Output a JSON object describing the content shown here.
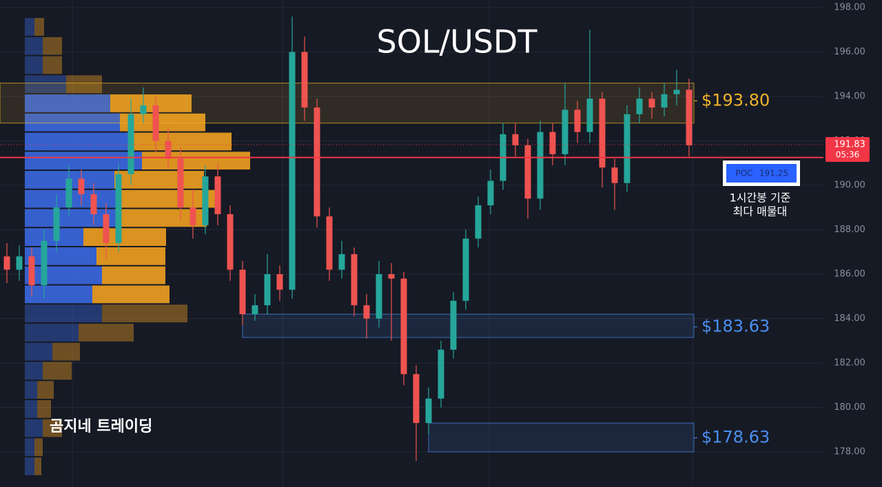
{
  "chart_data": {
    "type": "candlestick",
    "title": "SOL/USDT",
    "watermark": "곰지네 트레이딩",
    "ylim": [
      176.42,
      198.34
    ],
    "yticks": [
      {
        "value": 178,
        "label": "178.00"
      },
      {
        "value": 180,
        "label": "180.00"
      },
      {
        "value": 182,
        "label": "182.00"
      },
      {
        "value": 184,
        "label": "184.00"
      },
      {
        "value": 186,
        "label": "186.00"
      },
      {
        "value": 188,
        "label": "188.00"
      },
      {
        "value": 190,
        "label": "190.00"
      },
      {
        "value": 192,
        "label": "192.00"
      },
      {
        "value": 194,
        "label": "194.00"
      },
      {
        "value": 196,
        "label": "196.00"
      },
      {
        "value": 198,
        "label": "198.00"
      }
    ],
    "grid": true,
    "up_color": "#26a69a",
    "down_color": "#ef5350",
    "open": [
      186.8,
      186.2,
      186.8,
      185.5,
      187.5,
      189.0,
      190.3,
      189.6,
      188.7,
      187.4,
      190.5,
      193.2,
      193.6,
      192.0,
      191.2,
      189.0,
      188.2,
      190.4,
      188.7,
      186.2,
      184.2,
      184.6,
      186.0,
      185.3,
      196.0,
      193.5,
      188.6,
      186.2,
      186.9,
      184.6,
      184.0,
      186.0,
      185.8,
      181.5,
      179.3,
      180.4,
      182.6,
      184.8,
      187.6,
      189.1,
      190.2,
      192.3,
      191.8,
      189.4,
      192.4,
      191.4,
      193.4,
      192.4,
      193.9,
      190.8,
      190.1,
      193.2,
      193.9,
      193.5,
      194.1,
      194.3
    ],
    "high": [
      187.4,
      187.3,
      187.2,
      188.0,
      189.6,
      190.9,
      190.7,
      190.1,
      189.2,
      191.0,
      193.9,
      194.4,
      194.0,
      192.6,
      191.7,
      189.8,
      190.9,
      191.0,
      189.1,
      186.6,
      185.1,
      186.9,
      186.4,
      197.6,
      196.7,
      193.9,
      189.0,
      187.5,
      187.2,
      185.1,
      186.6,
      186.5,
      186.1,
      181.9,
      180.9,
      183.0,
      185.2,
      188.0,
      189.5,
      190.7,
      192.8,
      192.8,
      192.1,
      192.9,
      192.8,
      194.6,
      193.8,
      197.0,
      194.2,
      191.2,
      193.6,
      194.4,
      194.2,
      194.6,
      195.2,
      194.8
    ],
    "low": [
      185.6,
      185.7,
      185.0,
      184.9,
      187.0,
      188.6,
      189.1,
      188.2,
      186.7,
      187.0,
      190.0,
      192.8,
      191.5,
      190.7,
      188.4,
      187.6,
      187.8,
      188.2,
      185.7,
      183.7,
      183.9,
      184.2,
      184.8,
      184.9,
      192.9,
      188.1,
      185.7,
      185.8,
      184.1,
      183.1,
      183.6,
      183.0,
      181.0,
      177.6,
      178.8,
      180.0,
      182.2,
      184.4,
      187.2,
      188.7,
      189.8,
      191.3,
      188.5,
      188.9,
      190.9,
      190.9,
      191.9,
      191.9,
      189.9,
      188.9,
      189.7,
      192.8,
      193.0,
      193.1,
      193.6,
      191.3
    ],
    "close": [
      186.2,
      186.8,
      185.5,
      187.5,
      189.0,
      190.3,
      189.6,
      188.7,
      187.4,
      190.5,
      193.2,
      193.6,
      192.0,
      191.2,
      189.0,
      188.2,
      190.4,
      188.7,
      186.2,
      184.2,
      184.6,
      186.0,
      185.3,
      196.0,
      193.5,
      188.6,
      186.2,
      186.9,
      184.6,
      184.0,
      186.0,
      185.8,
      181.5,
      179.3,
      180.4,
      182.6,
      184.8,
      187.6,
      189.1,
      190.2,
      192.3,
      191.8,
      189.4,
      192.4,
      191.4,
      193.4,
      192.4,
      193.9,
      190.8,
      190.1,
      193.2,
      193.9,
      193.5,
      194.1,
      194.3,
      191.8
    ],
    "volume_profile": {
      "bins": [
        176.92,
        177.78,
        178.64,
        179.5,
        180.36,
        181.22,
        182.08,
        182.94,
        183.8,
        184.66,
        185.52,
        186.38,
        187.24,
        188.1,
        188.96,
        189.82,
        190.68,
        191.54,
        192.4,
        193.26,
        194.12,
        194.98,
        195.84,
        196.7,
        197.56
      ],
      "buy": [
        14,
        14,
        26,
        18,
        18,
        26,
        40,
        78,
        112,
        98,
        112,
        104,
        85,
        138,
        138,
        130,
        170,
        150,
        138,
        124,
        60,
        26,
        26,
        14
      ],
      "sell": [
        10,
        12,
        28,
        20,
        24,
        42,
        40,
        80,
        124,
        112,
        92,
        100,
        120,
        126,
        142,
        130,
        157,
        150,
        124,
        118,
        52,
        28,
        28,
        14
      ],
      "buy_color": "#3a68e0",
      "sell_color": "#f0a020",
      "value_area": [
        184.66,
        194.12
      ]
    },
    "zones": [
      {
        "label": "$193.80",
        "value": 193.8,
        "low": 192.8,
        "high": 194.6,
        "from_index": 0,
        "color": "#f0b429"
      },
      {
        "label": "$183.63",
        "value": 183.63,
        "low": 183.15,
        "high": 184.2,
        "from_index": 19,
        "color": "#4a8ff0"
      },
      {
        "label": "$178.63",
        "value": 178.63,
        "low": 178.0,
        "high": 179.3,
        "from_index": 34,
        "color": "#4a8ff0"
      }
    ],
    "poc": {
      "label": "POC",
      "value": 191.25,
      "color": "#f23645",
      "note": [
        "1시간봉 기준",
        "최다 매물대"
      ]
    },
    "last_price": {
      "value": 191.83,
      "countdown": "05:36",
      "color": "#f23645"
    }
  }
}
